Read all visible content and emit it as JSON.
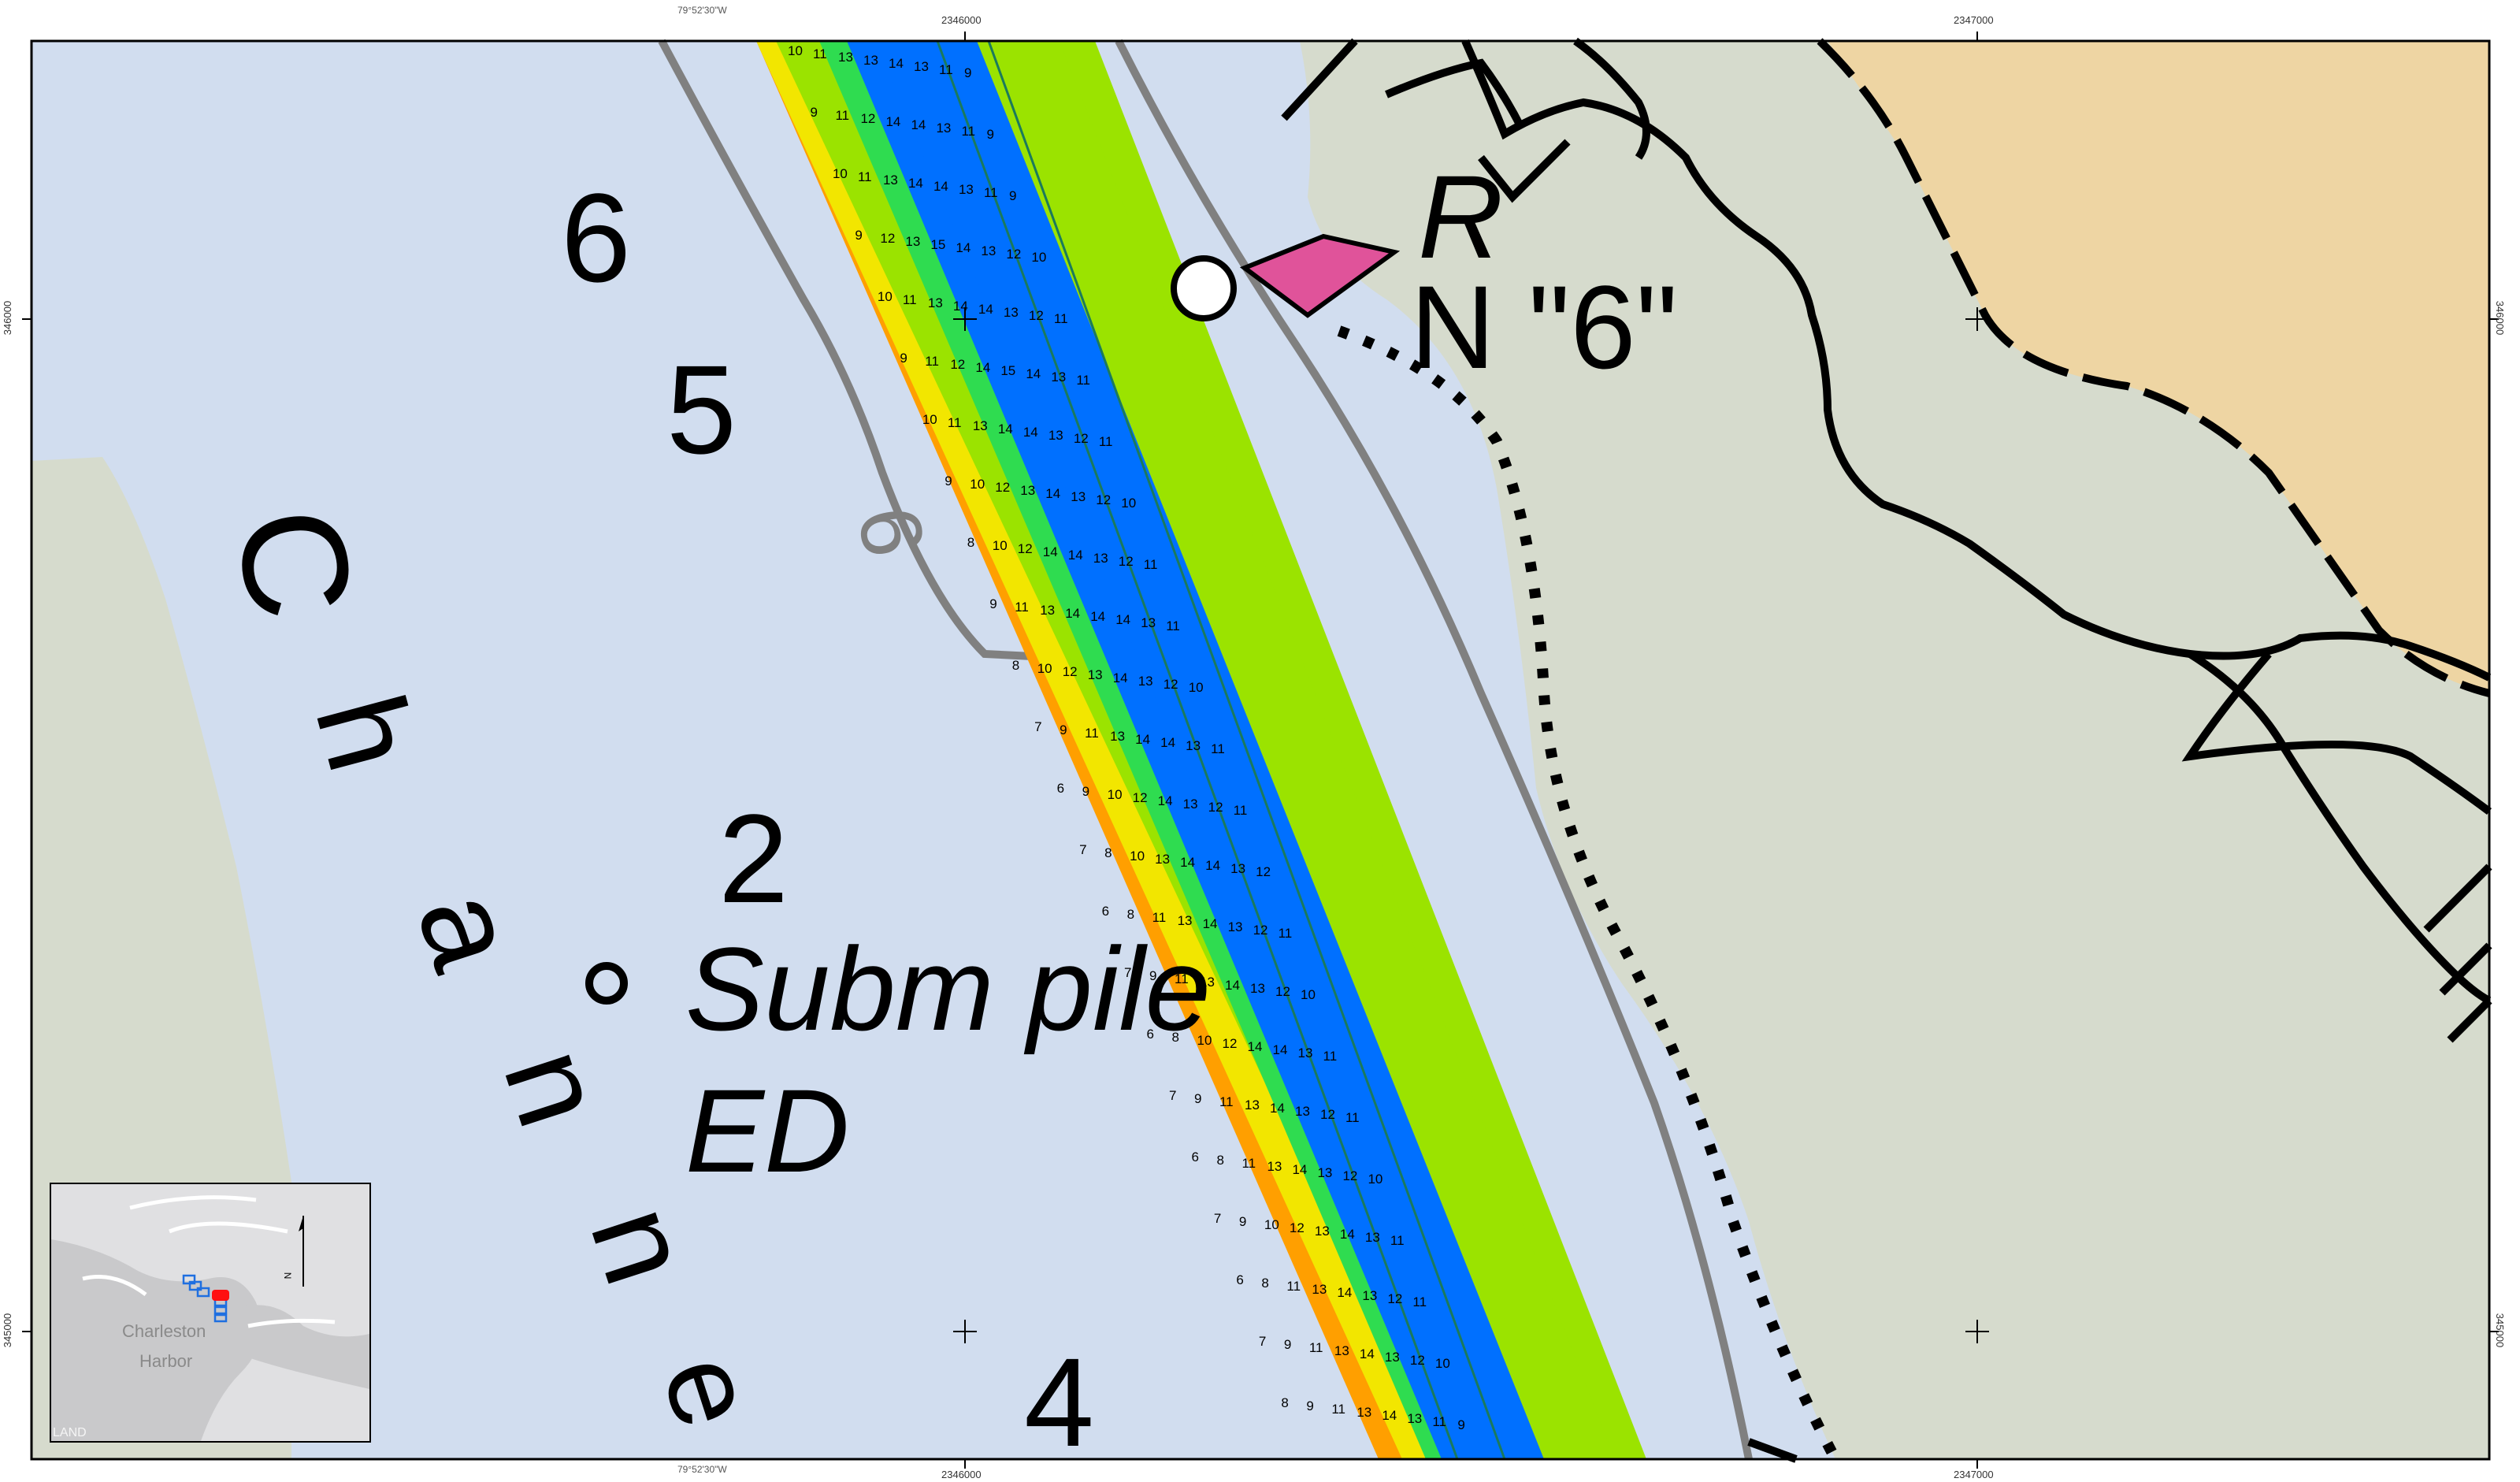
{
  "frame": {
    "top_coords": [
      {
        "id": "lon",
        "text": "79°52'30\"W"
      },
      {
        "id": "t1",
        "text": "2346000"
      },
      {
        "id": "t2",
        "text": "2347000"
      }
    ],
    "bottom_coords": [
      {
        "id": "b0",
        "text": "79°52'30\"W"
      },
      {
        "id": "b1",
        "text": "2346000"
      },
      {
        "id": "b2",
        "text": "2347000"
      }
    ],
    "left_coords": [
      {
        "id": "l1",
        "text": "346000"
      },
      {
        "id": "l2",
        "text": "345000"
      }
    ],
    "right_coords": [
      {
        "id": "r1",
        "text": "346000"
      },
      {
        "id": "r2",
        "text": "345000"
      }
    ]
  },
  "chart_labels": {
    "soundings": [
      "6",
      "5",
      "2",
      "4"
    ],
    "contour_label": "6",
    "channel_letters": [
      "C",
      "h",
      "a",
      "n",
      "n",
      "e"
    ],
    "pile_label_line1": "Subm pile",
    "pile_label_line2": "ED",
    "buoy_line1": "R",
    "buoy_line2": "N \"6\""
  },
  "colors": {
    "water": "#d1ddef",
    "land": "#d6dbcd",
    "land_tan": "#eed5a3",
    "shallow_left": "#d6dbcd",
    "depth_6_7": "#ff9f00",
    "depth_8_9": "#f2e600",
    "depth_10_11": "#9be300",
    "depth_12": "#2fdc50",
    "depth_13_15": "#0070ff",
    "contour": "#808080",
    "buoy": "#e0539a"
  },
  "depth_grid": {
    "rows": [
      [
        "10",
        "11",
        "13",
        "13",
        "14",
        "13",
        "11",
        "9"
      ],
      [
        "9",
        "11",
        "12",
        "14",
        "14",
        "13",
        "11",
        "9"
      ],
      [
        "10",
        "11",
        "13",
        "14",
        "14",
        "13",
        "11",
        "9"
      ],
      [
        "9",
        "12",
        "13",
        "15",
        "14",
        "13",
        "12",
        "10"
      ],
      [
        "10",
        "11",
        "13",
        "14",
        "14",
        "13",
        "12",
        "11"
      ],
      [
        "9",
        "11",
        "12",
        "14",
        "15",
        "14",
        "13",
        "11"
      ],
      [
        "10",
        "11",
        "13",
        "14",
        "14",
        "13",
        "12",
        "11"
      ],
      [
        "9",
        "10",
        "12",
        "13",
        "14",
        "13",
        "12",
        "10"
      ],
      [
        "8",
        "10",
        "12",
        "14",
        "14",
        "13",
        "12",
        "11"
      ],
      [
        "9",
        "11",
        "13",
        "14",
        "14",
        "14",
        "13",
        "11"
      ],
      [
        "8",
        "10",
        "12",
        "13",
        "14",
        "13",
        "12",
        "10"
      ],
      [
        "7",
        "9",
        "11",
        "13",
        "14",
        "14",
        "13",
        "11"
      ],
      [
        "6",
        "9",
        "10",
        "12",
        "14",
        "13",
        "12",
        "11"
      ],
      [
        "7",
        "8",
        "10",
        "13",
        "14",
        "14",
        "13",
        "12"
      ],
      [
        "6",
        "8",
        "11",
        "13",
        "14",
        "13",
        "12",
        "11"
      ],
      [
        "7",
        "9",
        "11",
        "13",
        "14",
        "13",
        "12",
        "10"
      ],
      [
        "6",
        "8",
        "10",
        "12",
        "14",
        "14",
        "13",
        "11"
      ],
      [
        "7",
        "9",
        "11",
        "13",
        "14",
        "13",
        "12",
        "11"
      ],
      [
        "6",
        "8",
        "11",
        "13",
        "14",
        "13",
        "12",
        "10"
      ],
      [
        "7",
        "9",
        "10",
        "12",
        "13",
        "14",
        "13",
        "11"
      ],
      [
        "6",
        "8",
        "11",
        "13",
        "14",
        "13",
        "12",
        "11"
      ],
      [
        "7",
        "9",
        "11",
        "13",
        "14",
        "13",
        "12",
        "10"
      ],
      [
        "8",
        "9",
        "11",
        "13",
        "14",
        "13",
        "11",
        "9"
      ]
    ]
  },
  "inset": {
    "labels": [
      "Charleston",
      "Harbor",
      "LAND"
    ],
    "north_letter": "N"
  }
}
